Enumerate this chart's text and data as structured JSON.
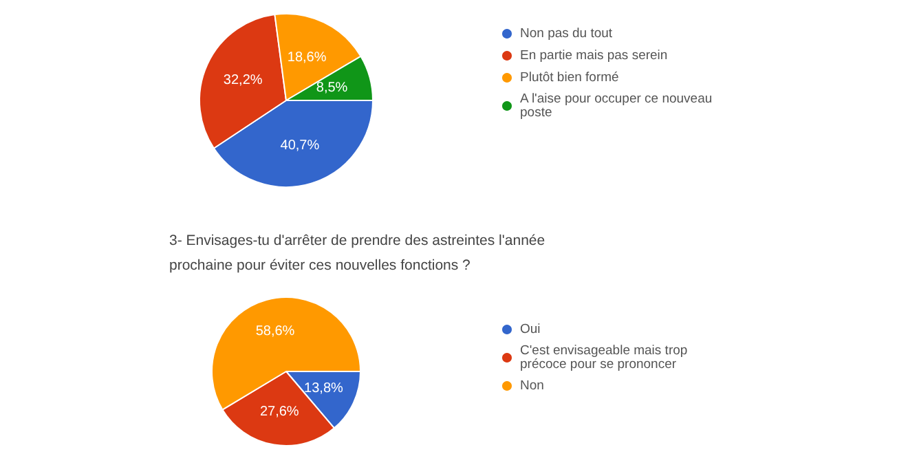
{
  "chart_data": [
    {
      "type": "pie",
      "categories": [
        "Non pas du tout",
        "En partie mais pas serein",
        "Plutôt bien formé",
        "A l'aise pour occuper ce nouveau poste"
      ],
      "values": [
        40.7,
        32.2,
        18.6,
        8.5
      ],
      "value_labels": [
        "40,7%",
        "32,2%",
        "18,6%",
        "8,5%"
      ],
      "colors": [
        "#3366cc",
        "#dc3912",
        "#ff9900",
        "#109618"
      ],
      "legend": "right"
    },
    {
      "type": "pie",
      "title": "3- Envisages-tu d'arrêter de prendre des astreintes l'année prochaine pour éviter ces nouvelles fonctions ?",
      "categories": [
        "Oui",
        "C'est envisageable mais trop précoce pour se prononcer",
        "Non"
      ],
      "values": [
        13.8,
        27.6,
        58.6
      ],
      "value_labels": [
        "13,8%",
        "27,6%",
        "58,6%"
      ],
      "colors": [
        "#3366cc",
        "#dc3912",
        "#ff9900"
      ],
      "legend": "right"
    }
  ]
}
